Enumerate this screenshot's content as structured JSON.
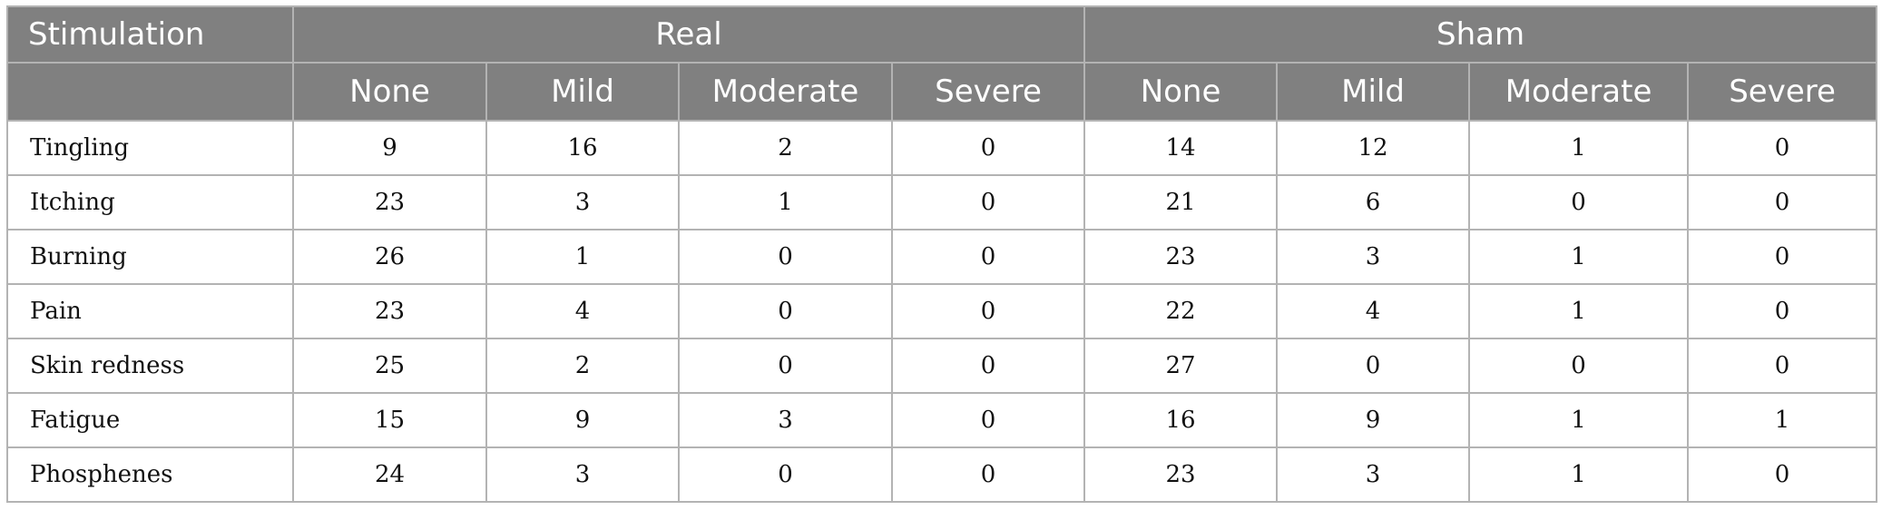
{
  "table": {
    "corner_label": "Stimulation",
    "groups": [
      {
        "label": "Real"
      },
      {
        "label": "Sham"
      }
    ],
    "subheaders": [
      "None",
      "Mild",
      "Moderate",
      "Severe",
      "None",
      "Mild",
      "Moderate",
      "Severe"
    ],
    "rows": [
      {
        "label": "Tingling",
        "values": [
          "9",
          "16",
          "2",
          "0",
          "14",
          "12",
          "1",
          "0"
        ]
      },
      {
        "label": "Itching",
        "values": [
          "23",
          "3",
          "1",
          "0",
          "21",
          "6",
          "0",
          "0"
        ]
      },
      {
        "label": "Burning",
        "values": [
          "26",
          "1",
          "0",
          "0",
          "23",
          "3",
          "1",
          "0"
        ]
      },
      {
        "label": "Pain",
        "values": [
          "23",
          "4",
          "0",
          "0",
          "22",
          "4",
          "1",
          "0"
        ]
      },
      {
        "label": "Skin redness",
        "values": [
          "25",
          "2",
          "0",
          "0",
          "27",
          "0",
          "0",
          "0"
        ]
      },
      {
        "label": "Fatigue",
        "values": [
          "15",
          "9",
          "3",
          "0",
          "16",
          "9",
          "1",
          "1"
        ]
      },
      {
        "label": "Phosphenes",
        "values": [
          "24",
          "3",
          "0",
          "0",
          "23",
          "3",
          "1",
          "0"
        ]
      }
    ],
    "colors": {
      "header_bg": "#808080",
      "header_text": "#ffffff",
      "grid": "#b3b3b3"
    }
  }
}
